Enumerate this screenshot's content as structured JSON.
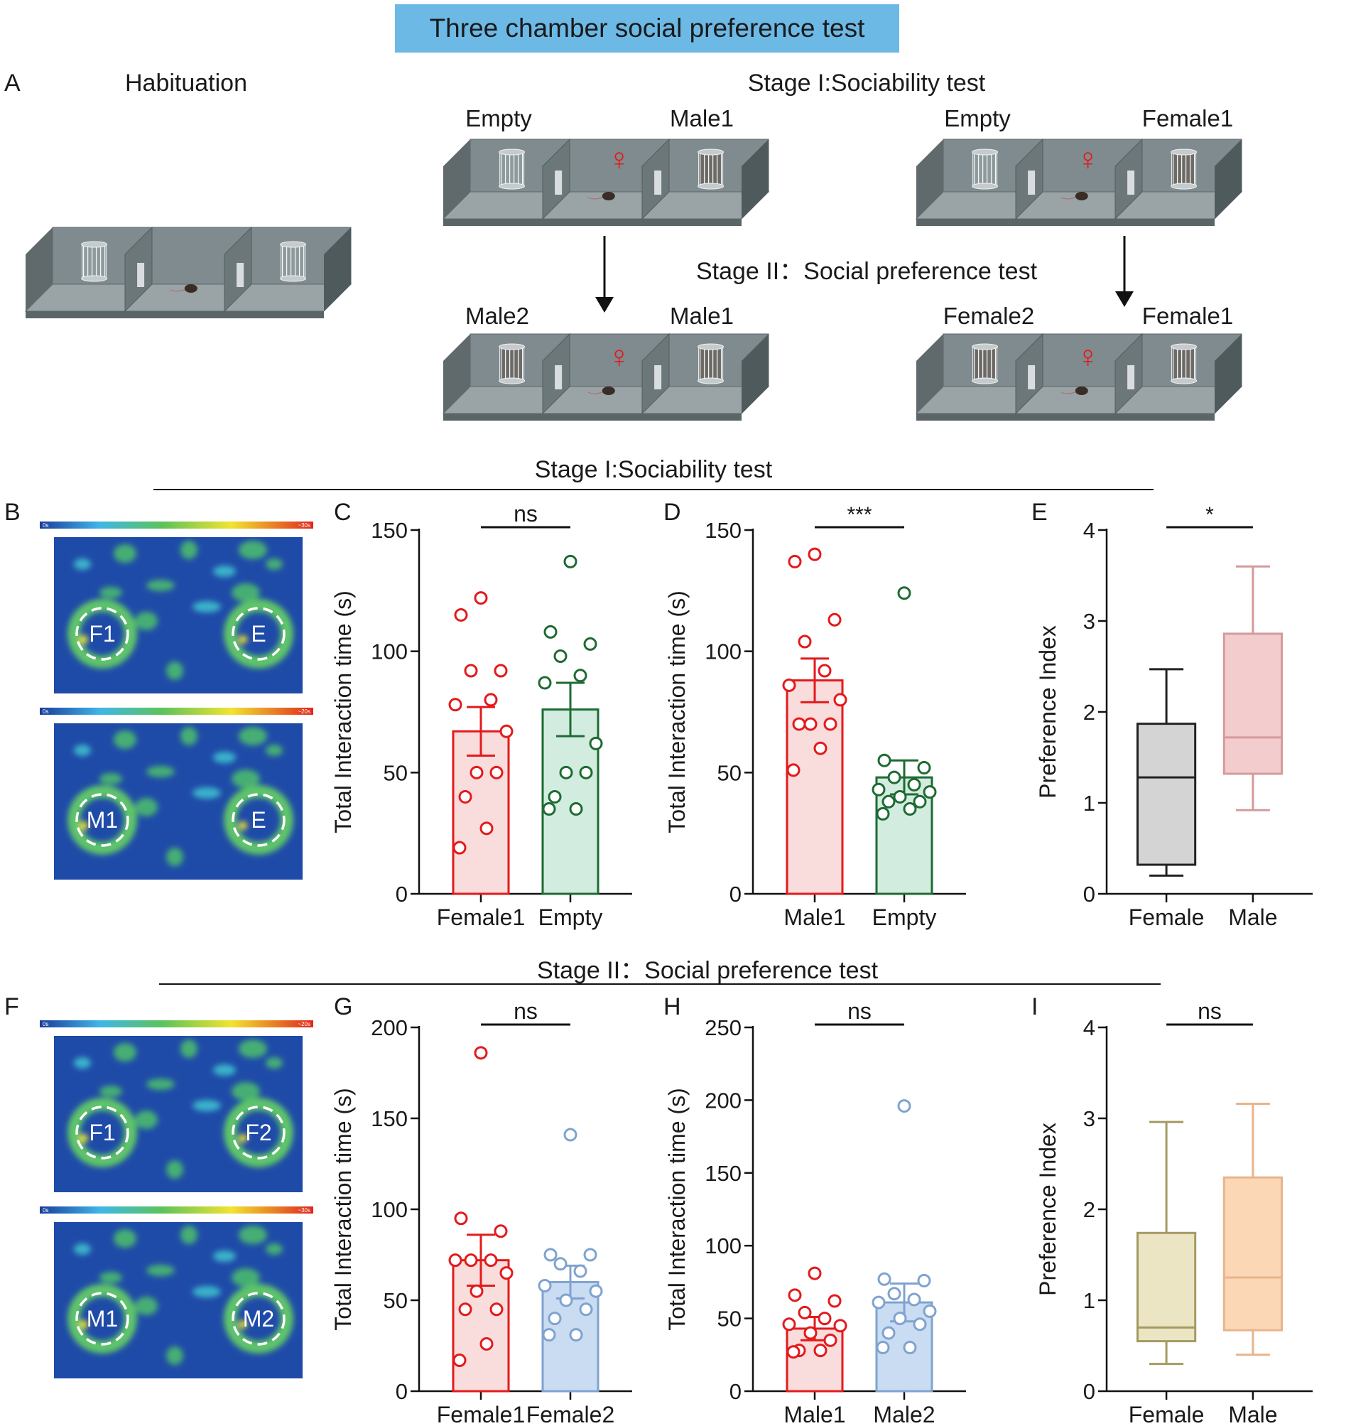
{
  "title": "Three chamber social preference test",
  "panelA": {
    "label": "A",
    "habituation": "Habituation",
    "stage1": "Stage I:Sociability test",
    "stage2": "Stage II：Social preference test",
    "female_symbol": "♀",
    "setups": {
      "s1_left": {
        "left": "Empty",
        "right": "Male1"
      },
      "s1_right": {
        "left": "Empty",
        "right": "Female1"
      },
      "s2_left": {
        "left": "Male2",
        "right": "Male1"
      },
      "s2_right": {
        "left": "Female2",
        "right": "Female1"
      }
    }
  },
  "stage1_header": "Stage I:Sociability test",
  "stage2_header": "Stage II：Social preference test",
  "panelB": {
    "label": "B",
    "maps": [
      {
        "scale_min": "0s",
        "scale_max": "~30s",
        "zone_left": "F1",
        "zone_right": "E"
      },
      {
        "scale_min": "0s",
        "scale_max": "~20s",
        "zone_left": "M1",
        "zone_right": "E"
      }
    ]
  },
  "panelF": {
    "label": "F",
    "maps": [
      {
        "scale_min": "0s",
        "scale_max": "~20s",
        "zone_left": "F1",
        "zone_right": "F2"
      },
      {
        "scale_min": "0s",
        "scale_max": "~30s",
        "zone_left": "M1",
        "zone_right": "M2"
      }
    ]
  },
  "colors": {
    "red": "#e31a1c",
    "red_fill": "#f9dcdc",
    "green": "#1e6b33",
    "green_fill": "#d3ece0",
    "blue": "#7fa3d0",
    "blue_fill": "#c9dcf1",
    "box_gray": "#d4d4d4",
    "box_pink": "#f3cdce",
    "box_pink_edge": "#d59a9c",
    "box_olive": "#ebe5c4",
    "box_olive_edge": "#a59a62",
    "box_orange": "#fbd7b5",
    "box_orange_edge": "#e8b48b"
  },
  "chart_data": [
    {
      "id": "C",
      "type": "bar",
      "ylabel": "Total Interaction time (s)",
      "ylim": [
        0,
        150
      ],
      "yticks": [
        0,
        50,
        100,
        150
      ],
      "categories": [
        "Female1",
        "Empty"
      ],
      "means": [
        67,
        76
      ],
      "sem": [
        10,
        11
      ],
      "points": [
        [
          122,
          115,
          92,
          92,
          80,
          78,
          67,
          50,
          50,
          40,
          27,
          19
        ],
        [
          137,
          108,
          103,
          98,
          90,
          87,
          62,
          50,
          50,
          40,
          35,
          35
        ]
      ],
      "significance": "ns"
    },
    {
      "id": "D",
      "type": "bar",
      "ylabel": "Total Interaction time (s)",
      "ylim": [
        0,
        150
      ],
      "yticks": [
        0,
        50,
        100,
        150
      ],
      "categories": [
        "Male1",
        "Empty"
      ],
      "means": [
        88,
        48
      ],
      "sem": [
        9,
        7
      ],
      "points": [
        [
          140,
          137,
          113,
          104,
          92,
          86,
          80,
          70,
          70,
          70,
          60,
          51
        ],
        [
          124,
          55,
          52,
          48,
          45,
          43,
          42,
          40,
          38,
          38,
          35,
          33
        ]
      ],
      "significance": "***"
    },
    {
      "id": "E",
      "type": "box",
      "ylabel": "Preference Index",
      "ylim": [
        0,
        4
      ],
      "yticks": [
        0,
        1,
        2,
        3,
        4
      ],
      "categories": [
        "Female",
        "Male"
      ],
      "boxes": [
        {
          "min": 0.2,
          "q1": 0.32,
          "median": 1.28,
          "q3": 1.87,
          "max": 2.47
        },
        {
          "min": 0.92,
          "q1": 1.32,
          "median": 1.72,
          "q3": 2.86,
          "max": 3.6
        }
      ],
      "significance": "*"
    },
    {
      "id": "G",
      "type": "bar",
      "ylabel": "Total Interaction time (s)",
      "ylim": [
        0,
        200
      ],
      "yticks": [
        0,
        50,
        100,
        150,
        200
      ],
      "categories": [
        "Female1",
        "Female2"
      ],
      "means": [
        72,
        60
      ],
      "sem": [
        14,
        9
      ],
      "points": [
        [
          186,
          95,
          88,
          72,
          72,
          72,
          65,
          55,
          45,
          45,
          26,
          17
        ],
        [
          141,
          75,
          75,
          70,
          66,
          58,
          55,
          50,
          45,
          40,
          31,
          31
        ]
      ],
      "significance": "ns"
    },
    {
      "id": "H",
      "type": "bar",
      "ylabel": "Total Interaction time (s)",
      "ylim": [
        0,
        250
      ],
      "yticks": [
        0,
        50,
        100,
        150,
        200,
        250
      ],
      "categories": [
        "Male1",
        "Male2"
      ],
      "means": [
        43,
        61
      ],
      "sem": [
        8,
        13
      ],
      "points": [
        [
          81,
          66,
          62,
          54,
          50,
          46,
          45,
          40,
          35,
          28,
          28,
          27
        ],
        [
          196,
          77,
          76,
          67,
          63,
          61,
          55,
          50,
          46,
          40,
          30,
          30
        ]
      ],
      "significance": "ns"
    },
    {
      "id": "I",
      "type": "box",
      "ylabel": "Preference Index",
      "ylim": [
        0,
        4
      ],
      "yticks": [
        0,
        1,
        2,
        3,
        4
      ],
      "categories": [
        "Female",
        "Male"
      ],
      "boxes": [
        {
          "min": 0.3,
          "q1": 0.55,
          "median": 0.7,
          "q3": 1.74,
          "max": 2.96
        },
        {
          "min": 0.4,
          "q1": 0.67,
          "median": 1.25,
          "q3": 2.35,
          "max": 3.16
        }
      ],
      "significance": "ns"
    }
  ]
}
